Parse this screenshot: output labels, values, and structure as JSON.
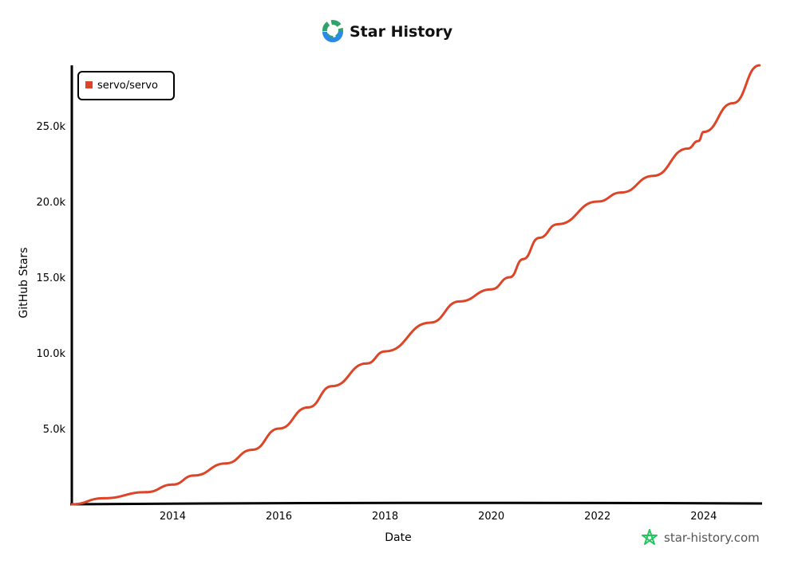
{
  "header": {
    "title": "Star History",
    "logo_icon": "star-history-logo-icon"
  },
  "watermark": {
    "text": "star-history.com",
    "icon": "star-icon",
    "icon_color": "#22c55e"
  },
  "chart_data": {
    "type": "line",
    "title": "Star History",
    "xlabel": "Date",
    "ylabel": "GitHub Stars",
    "xlim": [
      2012.1,
      2025.07
    ],
    "ylim": [
      0,
      29000
    ],
    "x_ticks": [
      2014,
      2016,
      2018,
      2020,
      2022,
      2024
    ],
    "x_tick_labels": [
      "2014",
      "2016",
      "2018",
      "2020",
      "2022",
      "2024"
    ],
    "y_ticks": [
      5000,
      10000,
      15000,
      20000,
      25000
    ],
    "y_tick_labels": [
      "5.0k",
      "10.0k",
      "15.0k",
      "20.0k",
      "25.0k"
    ],
    "grid": false,
    "legend_position": "top-left",
    "series": [
      {
        "name": "servo/servo",
        "color": "#dd4528",
        "x": [
          2012.1,
          2012.7,
          2013.5,
          2014.0,
          2014.4,
          2015.0,
          2015.5,
          2016.0,
          2016.55,
          2017.0,
          2017.65,
          2018.0,
          2018.85,
          2019.4,
          2020.0,
          2020.35,
          2020.6,
          2020.9,
          2021.25,
          2022.0,
          2022.45,
          2023.05,
          2023.7,
          2023.9,
          2024.0,
          2024.55,
          2025.05
        ],
        "y": [
          0,
          400,
          800,
          1300,
          1900,
          2700,
          3600,
          5000,
          6400,
          7800,
          9300,
          10100,
          12000,
          13400,
          14200,
          15000,
          16200,
          17600,
          18500,
          20000,
          20600,
          21700,
          23500,
          24000,
          24600,
          26500,
          29000
        ]
      }
    ]
  }
}
